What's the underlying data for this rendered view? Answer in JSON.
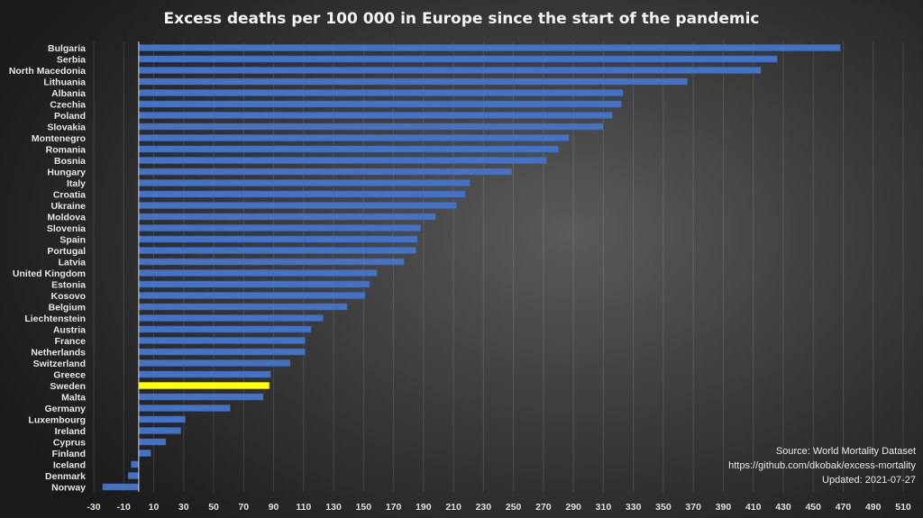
{
  "chart_data": {
    "type": "bar",
    "orientation": "horizontal",
    "title": "Excess deaths per 100 000 in Europe since the start of the pandemic",
    "xlabel": "",
    "ylabel": "",
    "xlim": [
      -30,
      510
    ],
    "x_ticks": [
      "-30",
      "-10",
      "10",
      "30",
      "50",
      "70",
      "90",
      "110",
      "130",
      "150",
      "170",
      "190",
      "210",
      "230",
      "250",
      "270",
      "290",
      "310",
      "330",
      "350",
      "370",
      "390",
      "410",
      "430",
      "450",
      "470",
      "490",
      "510"
    ],
    "grid": true,
    "categories": [
      "Bulgaria",
      "Serbia",
      "North Macedonia",
      "Lithuania",
      "Albania",
      "Czechia",
      "Poland",
      "Slovakia",
      "Montenegro",
      "Romania",
      "Bosnia",
      "Hungary",
      "Italy",
      "Croatia",
      "Ukraine",
      "Moldova",
      "Slovenia",
      "Spain",
      "Portugal",
      "Latvia",
      "United Kingdom",
      "Estonia",
      "Kosovo",
      "Belgium",
      "Liechtenstein",
      "Austria",
      "France",
      "Netherlands",
      "Switzerland",
      "Greece",
      "Sweden",
      "Malta",
      "Germany",
      "Luxembourg",
      "Ireland",
      "Cyprus",
      "Finland",
      "Iceland",
      "Denmark",
      "Norway"
    ],
    "values": [
      468,
      426,
      415,
      366,
      323,
      322,
      316,
      310,
      287,
      280,
      272,
      249,
      221,
      218,
      212,
      198,
      188,
      186,
      185,
      177,
      159,
      154,
      151,
      139,
      123,
      115,
      111,
      111,
      101,
      88,
      87,
      83,
      61,
      31,
      28,
      18,
      8,
      -5,
      -7,
      -24
    ],
    "highlight": "Sweden",
    "colors": {
      "bar": "#4472c4",
      "highlight": "#ffff00"
    },
    "annotations": [
      "Source: World Mortality Dataset",
      "https://github.com/dkobak/excess-mortality",
      "Updated: 2021-07-27"
    ]
  }
}
